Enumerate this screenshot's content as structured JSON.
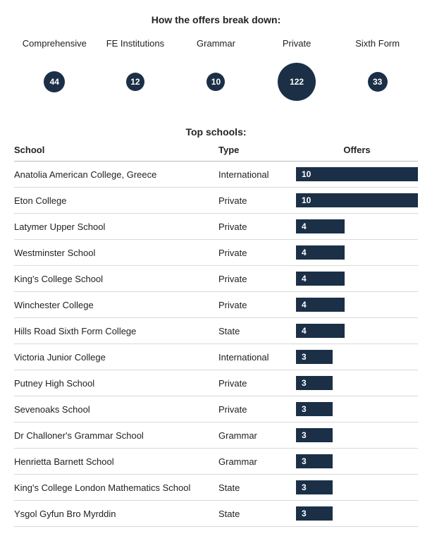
{
  "colors": {
    "bubble_fill": "#1b2f47",
    "bar_fill": "#1b2f47",
    "bar_text": "#ffffff",
    "divider": "#d9d9d9"
  },
  "breakdown": {
    "title": "How the offers break down:",
    "items": [
      {
        "label": "Comprehensive",
        "value": 44,
        "diameter": 30
      },
      {
        "label": "FE Institutions",
        "value": 12,
        "diameter": 26
      },
      {
        "label": "Grammar",
        "value": 10,
        "diameter": 26
      },
      {
        "label": "Private",
        "value": 122,
        "diameter": 54
      },
      {
        "label": "Sixth Form",
        "value": 33,
        "diameter": 28
      }
    ]
  },
  "top": {
    "title": "Top schools:",
    "headers": {
      "school": "School",
      "type": "Type",
      "offers": "Offers"
    },
    "max_offers": 10,
    "rows": [
      {
        "school": "Anatolia American College, Greece",
        "type": "International",
        "offers": 10
      },
      {
        "school": "Eton College",
        "type": "Private",
        "offers": 10
      },
      {
        "school": "Latymer Upper School",
        "type": "Private",
        "offers": 4
      },
      {
        "school": "Westminster School",
        "type": "Private",
        "offers": 4
      },
      {
        "school": "King's College School",
        "type": "Private",
        "offers": 4
      },
      {
        "school": "Winchester College",
        "type": "Private",
        "offers": 4
      },
      {
        "school": "Hills Road Sixth Form College",
        "type": "State",
        "offers": 4
      },
      {
        "school": "Victoria Junior College",
        "type": "International",
        "offers": 3
      },
      {
        "school": "Putney High School",
        "type": "Private",
        "offers": 3
      },
      {
        "school": "Sevenoaks School",
        "type": "Private",
        "offers": 3
      },
      {
        "school": "Dr Challoner's Grammar School",
        "type": "Grammar",
        "offers": 3
      },
      {
        "school": "Henrietta Barnett School",
        "type": "Grammar",
        "offers": 3
      },
      {
        "school": "King's College London Mathematics School",
        "type": "State",
        "offers": 3
      },
      {
        "school": "Ysgol Gyfun Bro Myrddin",
        "type": "State",
        "offers": 3
      }
    ]
  }
}
